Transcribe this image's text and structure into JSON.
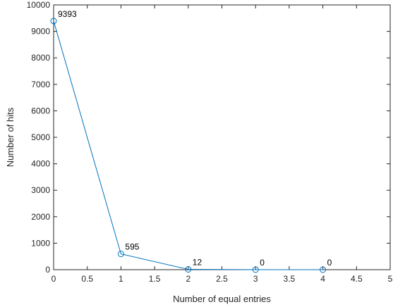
{
  "chart_data": {
    "type": "line",
    "title": "",
    "xlabel": "Number of equal entries",
    "ylabel": "Number of hits",
    "xlim": [
      0,
      5
    ],
    "ylim": [
      0,
      10000
    ],
    "grid": false,
    "x_ticks": [
      "0",
      "0.5",
      "1",
      "1.5",
      "2",
      "2.5",
      "3",
      "3.5",
      "4",
      "4.5",
      "5"
    ],
    "y_ticks": [
      "0",
      "1000",
      "2000",
      "3000",
      "4000",
      "5000",
      "6000",
      "7000",
      "8000",
      "9000",
      "10000"
    ],
    "series": [
      {
        "x": [
          0,
          1,
          2,
          3,
          4
        ],
        "y": [
          9393,
          595,
          12,
          0,
          0
        ],
        "marker": "circle",
        "labels": [
          "9393",
          "595",
          "12",
          "0",
          "0"
        ]
      }
    ],
    "colors": {
      "line": "#0072BD",
      "axes": "#262626",
      "text": "#000000"
    }
  }
}
